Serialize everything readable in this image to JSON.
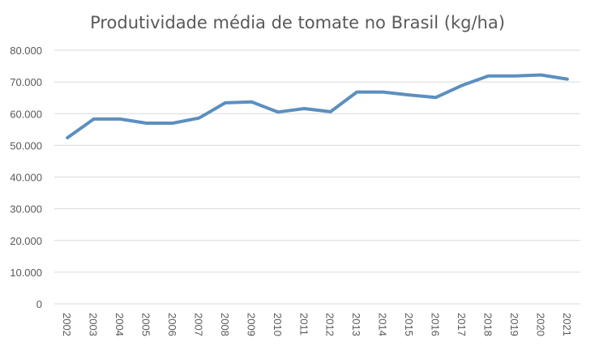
{
  "chart_data": {
    "type": "line",
    "title": "Produtividade média de tomate no Brasil (kg/ha)",
    "xlabel": "",
    "ylabel": "",
    "categories": [
      "2002",
      "2003",
      "2004",
      "2005",
      "2006",
      "2007",
      "2008",
      "2009",
      "2010",
      "2011",
      "2012",
      "2013",
      "2014",
      "2015",
      "2016",
      "2017",
      "2018",
      "2019",
      "2020",
      "2021"
    ],
    "series": [
      {
        "name": "Produtividade média (kg/ha)",
        "color": "#5b8fc0",
        "values": [
          52400,
          58300,
          58300,
          57000,
          57000,
          58600,
          63400,
          63700,
          60500,
          61600,
          60600,
          66800,
          66800,
          65900,
          65100,
          68900,
          71900,
          71900,
          72200,
          70900
        ]
      }
    ],
    "ylim": [
      0,
      80000
    ],
    "yticks": [
      0,
      10000,
      20000,
      30000,
      40000,
      50000,
      60000,
      70000,
      80000
    ],
    "ytick_labels": [
      "0",
      "10.000",
      "20.000",
      "30.000",
      "40.000",
      "50.000",
      "60.000",
      "70.000",
      "80.000"
    ],
    "grid": true,
    "legend": "none"
  }
}
